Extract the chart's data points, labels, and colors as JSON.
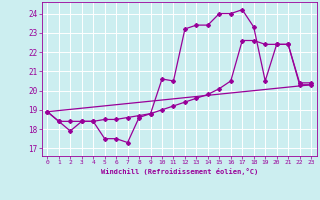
{
  "xlabel": "Windchill (Refroidissement éolien,°C)",
  "bg_color": "#cceef0",
  "grid_color": "#ffffff",
  "line_color": "#990099",
  "x_ticks": [
    0,
    1,
    2,
    3,
    4,
    5,
    6,
    7,
    8,
    9,
    10,
    11,
    12,
    13,
    14,
    15,
    16,
    17,
    18,
    19,
    20,
    21,
    22,
    23
  ],
  "y_ticks": [
    17,
    18,
    19,
    20,
    21,
    22,
    23,
    24
  ],
  "xlim": [
    -0.5,
    23.5
  ],
  "ylim": [
    16.6,
    24.6
  ],
  "line1_x": [
    0,
    1,
    2,
    3,
    4,
    5,
    6,
    7,
    8,
    9,
    10,
    11,
    12,
    13,
    14,
    15,
    16,
    17,
    18,
    19,
    20,
    21,
    22,
    23
  ],
  "line1_y": [
    18.9,
    18.4,
    17.9,
    18.4,
    18.4,
    17.5,
    17.5,
    17.3,
    18.6,
    18.8,
    20.6,
    20.5,
    23.2,
    23.4,
    23.4,
    24.0,
    24.0,
    24.2,
    23.3,
    20.5,
    22.4,
    22.4,
    20.4,
    20.4
  ],
  "line2_x": [
    0,
    1,
    2,
    3,
    4,
    5,
    6,
    7,
    8,
    9,
    10,
    11,
    12,
    13,
    14,
    15,
    16,
    17,
    18,
    19,
    20,
    21,
    22,
    23
  ],
  "line2_y": [
    18.9,
    18.4,
    18.4,
    18.4,
    18.4,
    18.5,
    18.5,
    18.6,
    18.7,
    18.8,
    19.0,
    19.2,
    19.4,
    19.6,
    19.8,
    20.1,
    20.5,
    22.6,
    22.6,
    22.4,
    22.4,
    22.4,
    20.3,
    20.3
  ],
  "line3_x": [
    0,
    23
  ],
  "line3_y": [
    18.9,
    20.3
  ]
}
